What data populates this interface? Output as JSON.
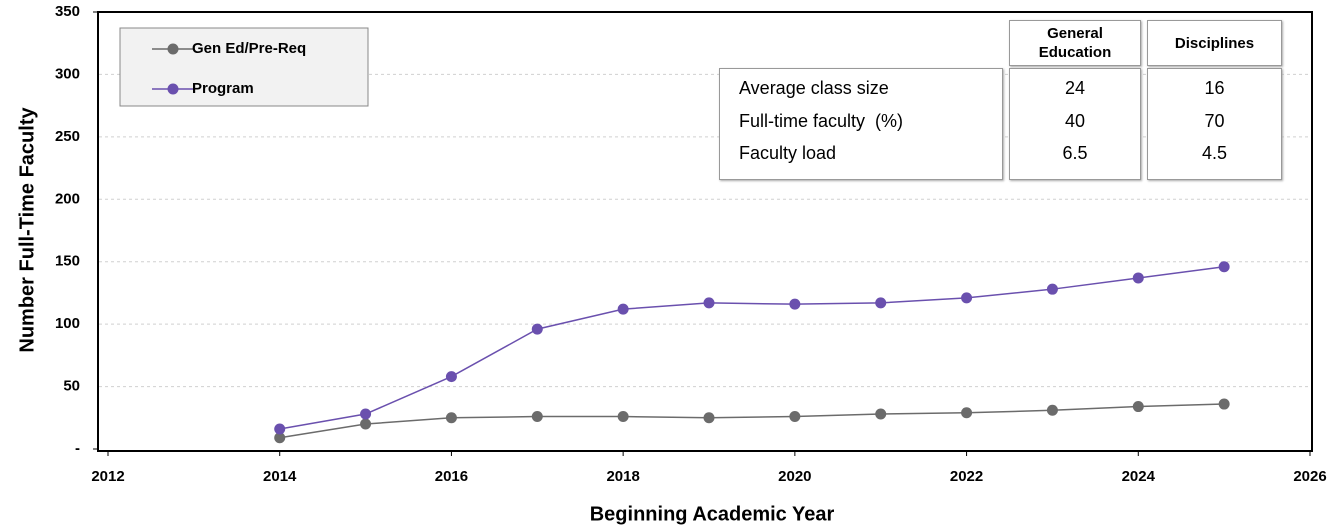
{
  "chart_data": {
    "type": "line",
    "x_label": "Beginning Academic Year",
    "y_label": "Number Full-Time Faculty",
    "x": [
      2014,
      2015,
      2016,
      2017,
      2018,
      2019,
      2020,
      2021,
      2022,
      2023,
      2024,
      2025
    ],
    "series": [
      {
        "name": "Gen Ed/Pre-Req",
        "color": "#6b6b6b",
        "values": [
          9,
          20,
          25,
          26,
          26,
          25,
          26,
          28,
          29,
          31,
          34,
          36
        ]
      },
      {
        "name": "Program",
        "color": "#6a50ae",
        "values": [
          16,
          28,
          58,
          96,
          112,
          117,
          116,
          117,
          121,
          128,
          137,
          146
        ]
      }
    ],
    "xlim": [
      2012,
      2026
    ],
    "xticks": [
      2012,
      2014,
      2016,
      2018,
      2020,
      2022,
      2024,
      2026
    ],
    "ylim": [
      0,
      350
    ],
    "yticks": [
      {
        "value": 0,
        "label": "-"
      },
      50,
      100,
      150,
      200,
      250,
      300,
      350
    ],
    "grid": true,
    "legend": "upper left",
    "table": {
      "columns": [
        "General Education",
        "Disciplines"
      ],
      "rows": [
        {
          "label": "Average class size",
          "values": [
            24,
            16
          ]
        },
        {
          "label": "Full-time faculty  (%)",
          "values": [
            40,
            70
          ]
        },
        {
          "label": "Faculty load",
          "values": [
            6.5,
            4.5
          ]
        }
      ]
    }
  }
}
